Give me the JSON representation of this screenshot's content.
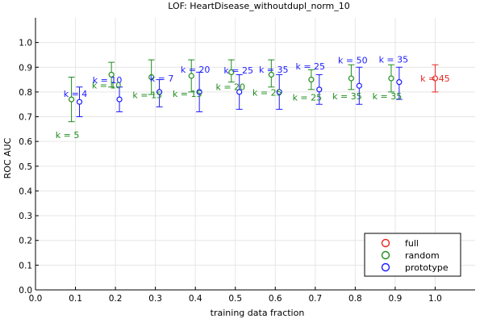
{
  "chart_data": {
    "type": "scatter",
    "title": "LOF: HeartDisease_withoutdupl_norm_10",
    "xlabel": "training data fraction",
    "ylabel": "ROC AUC",
    "xlim": [
      0.0,
      1.1
    ],
    "ylim": [
      0.0,
      1.1
    ],
    "xticks": [
      "0.0",
      "0.1",
      "0.2",
      "0.3",
      "0.4",
      "0.5",
      "0.6",
      "0.7",
      "0.8",
      "0.9",
      "1.0"
    ],
    "yticks": [
      "0.0",
      "0.1",
      "0.2",
      "0.3",
      "0.4",
      "0.5",
      "0.6",
      "0.7",
      "0.8",
      "0.9",
      "1.0"
    ],
    "grid": true,
    "legend_position": "bottom-right",
    "series": [
      {
        "name": "full",
        "color": "#e6261f",
        "points": [
          {
            "x": 1.0,
            "y": 0.855,
            "lo": 0.8,
            "hi": 0.91,
            "label": "k = 45"
          }
        ]
      },
      {
        "name": "random",
        "color": "#1e8c1e",
        "points": [
          {
            "x": 0.09,
            "y": 0.77,
            "lo": 0.68,
            "hi": 0.86,
            "label": "k = 5"
          },
          {
            "x": 0.19,
            "y": 0.87,
            "lo": 0.82,
            "hi": 0.92,
            "label": "k = 10"
          },
          {
            "x": 0.29,
            "y": 0.86,
            "lo": 0.79,
            "hi": 0.93,
            "label": "k = 15"
          },
          {
            "x": 0.39,
            "y": 0.865,
            "lo": 0.8,
            "hi": 0.93,
            "label": "k = 15"
          },
          {
            "x": 0.49,
            "y": 0.88,
            "lo": 0.84,
            "hi": 0.93,
            "label": "k = 20"
          },
          {
            "x": 0.59,
            "y": 0.87,
            "lo": 0.82,
            "hi": 0.93,
            "label": "k = 25"
          },
          {
            "x": 0.69,
            "y": 0.85,
            "lo": 0.81,
            "hi": 0.89,
            "label": "k = 25"
          },
          {
            "x": 0.79,
            "y": 0.855,
            "lo": 0.81,
            "hi": 0.91,
            "label": "k = 35"
          },
          {
            "x": 0.89,
            "y": 0.855,
            "lo": 0.8,
            "hi": 0.91,
            "label": "k = 35"
          }
        ]
      },
      {
        "name": "prototype",
        "color": "#1a1aff",
        "points": [
          {
            "x": 0.11,
            "y": 0.76,
            "lo": 0.7,
            "hi": 0.82,
            "label": "k = 4"
          },
          {
            "x": 0.21,
            "y": 0.77,
            "lo": 0.72,
            "hi": 0.82,
            "label": "k = 10"
          },
          {
            "x": 0.31,
            "y": 0.8,
            "lo": 0.74,
            "hi": 0.85,
            "label": "k = 7"
          },
          {
            "x": 0.41,
            "y": 0.8,
            "lo": 0.72,
            "hi": 0.88,
            "label": "k = 20"
          },
          {
            "x": 0.51,
            "y": 0.8,
            "lo": 0.73,
            "hi": 0.87,
            "label": "k = 25"
          },
          {
            "x": 0.61,
            "y": 0.8,
            "lo": 0.73,
            "hi": 0.87,
            "label": "k = 35"
          },
          {
            "x": 0.71,
            "y": 0.81,
            "lo": 0.75,
            "hi": 0.87,
            "label": "k = 25"
          },
          {
            "x": 0.81,
            "y": 0.825,
            "lo": 0.75,
            "hi": 0.9,
            "label": "k = 50"
          },
          {
            "x": 0.91,
            "y": 0.84,
            "lo": 0.77,
            "hi": 0.9,
            "label": "k = 35"
          }
        ]
      }
    ]
  }
}
